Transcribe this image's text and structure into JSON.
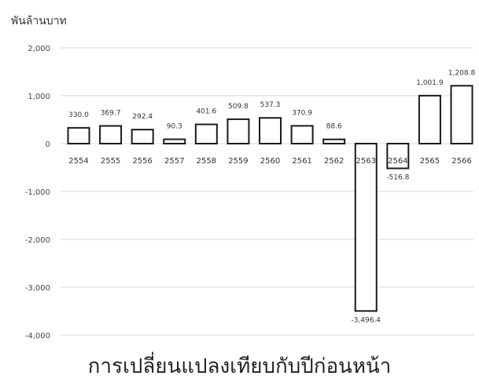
{
  "chart_data": {
    "type": "bar",
    "unit_label": "พันล้านบาท",
    "footer_title": "การเปลี่ยนแปลงเทียบกับปีก่อนหน้า",
    "categories": [
      "2554",
      "2555",
      "2556",
      "2557",
      "2558",
      "2559",
      "2560",
      "2561",
      "2562",
      "2563",
      "2564",
      "2565",
      "2566"
    ],
    "values": [
      330.0,
      369.7,
      292.4,
      90.3,
      401.6,
      509.8,
      537.3,
      370.9,
      88.6,
      -3496.4,
      -516.8,
      1001.9,
      1208.8
    ],
    "value_labels": [
      "330.0",
      "369.7",
      "292.4",
      "90.3",
      "401.6",
      "509.8",
      "537.3",
      "370.9",
      "88.6",
      "-3,496.4",
      "-516.8",
      "1,001.9",
      "1,208.8"
    ],
    "yticks": [
      2000,
      1000,
      0,
      -1000,
      -2000,
      -3000,
      -4000
    ],
    "ytick_labels": [
      "2,000",
      "1,000",
      "0",
      "-1,000",
      "-2,000",
      "-3,000",
      "-4,000"
    ],
    "ylim": [
      -4000,
      2000
    ],
    "grid": true,
    "colors": {
      "bar_fill": "#ffffff",
      "bar_stroke": "#1a1a1a",
      "grid": "#d9d9d9"
    }
  }
}
